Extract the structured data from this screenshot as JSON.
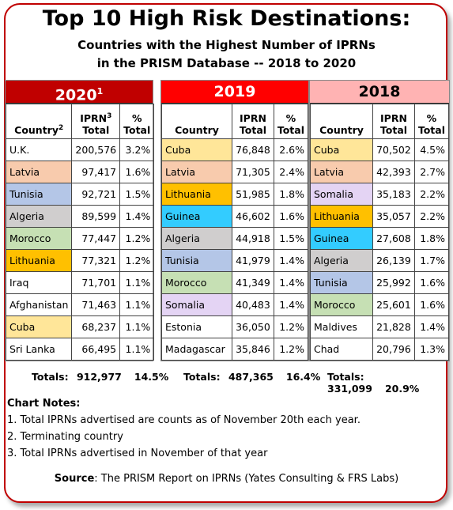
{
  "title": "Top 10 High Risk Destinations:",
  "subtitle_line1": "Countries with the Highest Number of IPRNs",
  "subtitle_line2": "in the PRISM Database -- 2018 to 2020",
  "colors": {
    "border": "#c00000",
    "hdr_2020": "#c00000",
    "hdr_2019": "#ff0000",
    "hdr_2018": "#ffb3b3",
    "Cuba": "#ffe699",
    "Latvia": "#f8cbad",
    "Tunisia": "#b4c6e7",
    "Algeria": "#d0cece",
    "Morocco": "#c6e0b4",
    "Lithuania": "#ffc000",
    "Guinea": "#33ccff",
    "Somalia": "#e4d4f4"
  },
  "chart_data": {
    "type": "table",
    "tables": [
      {
        "year": "2020",
        "year_sup": "1",
        "columns": [
          "Country",
          "IPRN Total",
          "% Total"
        ],
        "col_country": "Country",
        "col_country_sup": "2",
        "col_iprn": "IPRN",
        "col_total": "Total",
        "col_iprn_sup": "3",
        "col_pct": "%",
        "col_pct_total": "Total",
        "rows": [
          {
            "country": "U.K.",
            "iprn": "200,576",
            "pct": "3.2%"
          },
          {
            "country": "Latvia",
            "iprn": "97,417",
            "pct": "1.6%"
          },
          {
            "country": "Tunisia",
            "iprn": "92,721",
            "pct": "1.5%"
          },
          {
            "country": "Algeria",
            "iprn": "89,599",
            "pct": "1.4%"
          },
          {
            "country": "Morocco",
            "iprn": "77,447",
            "pct": "1.2%"
          },
          {
            "country": "Lithuania",
            "iprn": "77,321",
            "pct": "1.2%"
          },
          {
            "country": "Iraq",
            "iprn": "71,701",
            "pct": "1.1%"
          },
          {
            "country": "Afghanistan",
            "iprn": "71,463",
            "pct": "1.1%"
          },
          {
            "country": "Cuba",
            "iprn": "68,237",
            "pct": "1.1%"
          },
          {
            "country": "Sri Lanka",
            "iprn": "66,495",
            "pct": "1.1%"
          }
        ],
        "totals_label": "Totals:",
        "totals_iprn": "912,977",
        "totals_pct": "14.5%"
      },
      {
        "year": "2019",
        "year_sup": "",
        "columns": [
          "Country",
          "IPRN Total",
          "% Total"
        ],
        "col_country": "Country",
        "col_country_sup": "",
        "col_iprn": "IPRN",
        "col_total": "Total",
        "col_iprn_sup": "",
        "col_pct": "%",
        "col_pct_total": "Total",
        "rows": [
          {
            "country": "Cuba",
            "iprn": "76,848",
            "pct": "2.6%"
          },
          {
            "country": "Latvia",
            "iprn": "71,305",
            "pct": "2.4%"
          },
          {
            "country": "Lithuania",
            "iprn": "51,985",
            "pct": "1.8%"
          },
          {
            "country": "Guinea",
            "iprn": "46,602",
            "pct": "1.6%"
          },
          {
            "country": "Algeria",
            "iprn": "44,918",
            "pct": "1.5%"
          },
          {
            "country": "Tunisia",
            "iprn": "41,979",
            "pct": "1.4%"
          },
          {
            "country": "Morocco",
            "iprn": "41,349",
            "pct": "1.4%"
          },
          {
            "country": "Somalia",
            "iprn": "40,483",
            "pct": "1.4%"
          },
          {
            "country": "Estonia",
            "iprn": "36,050",
            "pct": "1.2%"
          },
          {
            "country": "Madagascar",
            "iprn": "35,846",
            "pct": "1.2%"
          }
        ],
        "totals_label": "Totals:",
        "totals_iprn": "487,365",
        "totals_pct": "16.4%"
      },
      {
        "year": "2018",
        "year_sup": "",
        "columns": [
          "Country",
          "IPRN Total",
          "% Total"
        ],
        "col_country": "Country",
        "col_country_sup": "",
        "col_iprn": "IPRN",
        "col_total": "Total",
        "col_iprn_sup": "",
        "col_pct": "%",
        "col_pct_total": "Total",
        "rows": [
          {
            "country": "Cuba",
            "iprn": "70,502",
            "pct": "4.5%"
          },
          {
            "country": "Latvia",
            "iprn": "42,393",
            "pct": "2.7%"
          },
          {
            "country": "Somalia",
            "iprn": "35,183",
            "pct": "2.2%"
          },
          {
            "country": "Lithuania",
            "iprn": "35,057",
            "pct": "2.2%"
          },
          {
            "country": "Guinea",
            "iprn": "27,608",
            "pct": "1.8%"
          },
          {
            "country": "Algeria",
            "iprn": "26,139",
            "pct": "1.7%"
          },
          {
            "country": "Tunisia",
            "iprn": "25,992",
            "pct": "1.6%"
          },
          {
            "country": "Morocco",
            "iprn": "25,601",
            "pct": "1.6%"
          },
          {
            "country": "Maldives",
            "iprn": "21,828",
            "pct": "1.4%"
          },
          {
            "country": "Chad",
            "iprn": "20,796",
            "pct": "1.3%"
          }
        ],
        "totals_label": "Totals:",
        "totals_iprn": "331,099",
        "totals_pct": "20.9%"
      }
    ]
  },
  "notes": {
    "heading": "Chart Notes:",
    "items": [
      "1. Total IPRNs advertised are counts as of November 20th each year.",
      "2. Terminating country",
      "3. Total IPRNs advertised in November of that year"
    ]
  },
  "source": {
    "label": "Source",
    "text": ": The PRISM Report on IPRNs (Yates Consulting & FRS Labs)"
  }
}
